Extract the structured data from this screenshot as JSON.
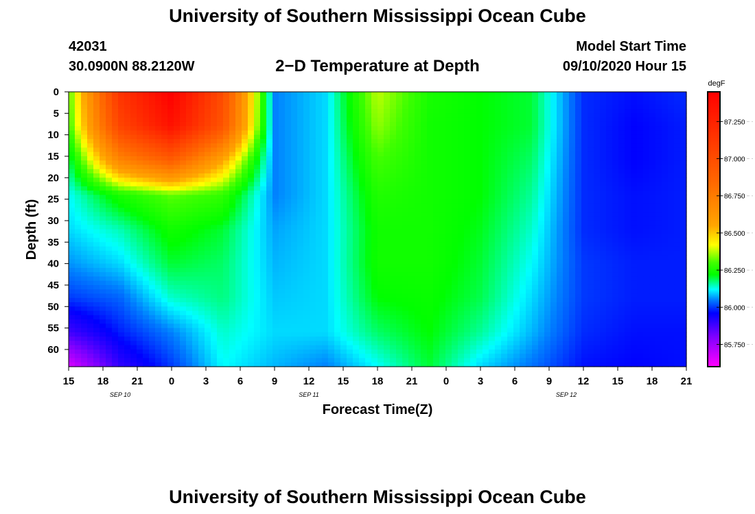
{
  "header": {
    "title": "University of Southern Mississippi Ocean Cube",
    "station_id": "42031",
    "location": "30.0900N 88.2120W",
    "model_start_label": "Model Start Time",
    "model_start_value": "09/10/2020 Hour 15",
    "footer_title": "University of Southern Mississippi Ocean Cube"
  },
  "chart_data": {
    "type": "heatmap",
    "title": "2−D Temperature at Depth",
    "xlabel": "Forecast Time(Z)",
    "ylabel": "Depth (ft)",
    "x_unit": "hours from model start (09/10/2020 15Z)",
    "xlim": [
      0,
      54
    ],
    "x_ticks": [
      {
        "hour": 0,
        "label": "15"
      },
      {
        "hour": 3,
        "label": "18"
      },
      {
        "hour": 6,
        "label": "21"
      },
      {
        "hour": 9,
        "label": "0"
      },
      {
        "hour": 12,
        "label": "3"
      },
      {
        "hour": 15,
        "label": "6"
      },
      {
        "hour": 18,
        "label": "9"
      },
      {
        "hour": 21,
        "label": "12"
      },
      {
        "hour": 24,
        "label": "15"
      },
      {
        "hour": 27,
        "label": "18"
      },
      {
        "hour": 30,
        "label": "21"
      },
      {
        "hour": 33,
        "label": "0"
      },
      {
        "hour": 36,
        "label": "3"
      },
      {
        "hour": 39,
        "label": "6"
      },
      {
        "hour": 42,
        "label": "9"
      },
      {
        "hour": 45,
        "label": "12"
      },
      {
        "hour": 48,
        "label": "15"
      },
      {
        "hour": 51,
        "label": "18"
      },
      {
        "hour": 54,
        "label": "21"
      }
    ],
    "date_labels": [
      {
        "hour": 4.5,
        "label": "SEP 10"
      },
      {
        "hour": 21,
        "label": "SEP 11"
      },
      {
        "hour": 43.5,
        "label": "SEP 12"
      }
    ],
    "ylim": [
      0,
      64
    ],
    "y_inverted": true,
    "y_ticks": [
      0,
      5,
      10,
      15,
      20,
      25,
      30,
      35,
      40,
      45,
      50,
      55,
      60
    ],
    "colorbar": {
      "unit": "degF",
      "range": [
        85.6,
        87.45
      ],
      "tick_values": [
        85.75,
        86.0,
        86.25,
        86.5,
        86.75,
        87.0,
        87.25
      ],
      "tick_labels": [
        "85.750",
        "86.000",
        "86.250",
        "86.500",
        "86.750",
        "87.000",
        "87.250"
      ],
      "colors": [
        {
          "value": 85.6,
          "color": "#ff00ff"
        },
        {
          "value": 85.8,
          "color": "#8000ff"
        },
        {
          "value": 85.96,
          "color": "#0000ff"
        },
        {
          "value": 86.05,
          "color": "#0080ff"
        },
        {
          "value": 86.12,
          "color": "#00ffff"
        },
        {
          "value": 86.22,
          "color": "#00ff00"
        },
        {
          "value": 86.3,
          "color": "#40ff00"
        },
        {
          "value": 86.42,
          "color": "#ffff00"
        },
        {
          "value": 86.55,
          "color": "#ffa500"
        },
        {
          "value": 86.85,
          "color": "#ff6600"
        },
        {
          "value": 87.45,
          "color": "#ff0000"
        }
      ]
    },
    "grid": {
      "hours": [
        0,
        4.5,
        9,
        13.5,
        18,
        22.5,
        27,
        31.5,
        36,
        40.5,
        45,
        49.5,
        54
      ],
      "depths": [
        0,
        8,
        16,
        24,
        32,
        40,
        48,
        56,
        64
      ],
      "values": [
        [
          86.3,
          87.15,
          87.45,
          87.0,
          86.05,
          86.1,
          86.38,
          86.25,
          86.22,
          86.2,
          85.99,
          85.97,
          85.99
        ],
        [
          86.28,
          87.05,
          87.35,
          86.95,
          86.05,
          86.1,
          86.35,
          86.24,
          86.22,
          86.2,
          85.99,
          85.96,
          85.98
        ],
        [
          86.18,
          86.7,
          86.9,
          86.55,
          86.05,
          86.1,
          86.3,
          86.24,
          86.22,
          86.18,
          85.99,
          85.96,
          85.98
        ],
        [
          86.12,
          86.25,
          86.32,
          86.28,
          86.05,
          86.1,
          86.26,
          86.24,
          86.22,
          86.16,
          85.99,
          85.97,
          85.98
        ],
        [
          86.1,
          86.15,
          86.24,
          86.2,
          86.07,
          86.1,
          86.24,
          86.24,
          86.21,
          86.14,
          85.99,
          85.97,
          85.98
        ],
        [
          86.06,
          86.1,
          86.2,
          86.18,
          86.08,
          86.1,
          86.24,
          86.24,
          86.2,
          86.12,
          86.0,
          85.98,
          85.98
        ],
        [
          86.0,
          86.03,
          86.14,
          86.17,
          86.09,
          86.1,
          86.22,
          86.23,
          86.19,
          86.1,
          86.0,
          85.98,
          85.98
        ],
        [
          85.88,
          85.98,
          86.05,
          86.14,
          86.1,
          86.1,
          86.18,
          86.22,
          86.16,
          86.08,
          85.99,
          85.97,
          85.97
        ],
        [
          85.66,
          85.9,
          86.0,
          86.12,
          86.08,
          86.05,
          86.12,
          86.2,
          86.1,
          86.04,
          85.97,
          85.96,
          85.97
        ]
      ]
    }
  }
}
